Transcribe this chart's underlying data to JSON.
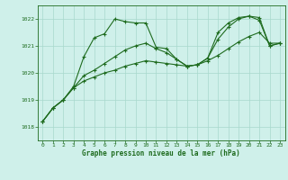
{
  "bg_color": "#cff0ea",
  "grid_color": "#a8d8cc",
  "line_color": "#1e6b1e",
  "ylim": [
    1017.5,
    1022.5
  ],
  "xlim": [
    -0.5,
    23.5
  ],
  "yticks": [
    1018,
    1019,
    1020,
    1021,
    1022
  ],
  "xticks": [
    0,
    1,
    2,
    3,
    4,
    5,
    6,
    7,
    8,
    9,
    10,
    11,
    12,
    13,
    14,
    15,
    16,
    17,
    18,
    19,
    20,
    21,
    22,
    23
  ],
  "xlabel": "Graphe pression niveau de la mer (hPa)",
  "series1_x": [
    0,
    1,
    2,
    3,
    4,
    5,
    6,
    7,
    8,
    9,
    10,
    11,
    12,
    13,
    14,
    15,
    16,
    17,
    18,
    19,
    20,
    21,
    22,
    23
  ],
  "series1_y": [
    1018.2,
    1018.7,
    1019.0,
    1019.5,
    1020.6,
    1021.3,
    1021.45,
    1022.0,
    1021.9,
    1021.85,
    1021.85,
    1020.95,
    1020.9,
    1020.5,
    1020.25,
    1020.3,
    1020.55,
    1021.5,
    1021.85,
    1022.05,
    1022.1,
    1022.05,
    1021.0,
    1021.1
  ],
  "series2_x": [
    0,
    1,
    2,
    3,
    4,
    5,
    6,
    7,
    8,
    9,
    10,
    11,
    12,
    13,
    14,
    15,
    16,
    17,
    18,
    19,
    20,
    21,
    22,
    23
  ],
  "series2_y": [
    1018.2,
    1018.7,
    1019.0,
    1019.45,
    1019.9,
    1020.1,
    1020.35,
    1020.6,
    1020.85,
    1021.0,
    1021.1,
    1020.9,
    1020.75,
    1020.5,
    1020.25,
    1020.3,
    1020.55,
    1021.25,
    1021.7,
    1022.0,
    1022.1,
    1021.95,
    1021.0,
    1021.1
  ],
  "series3_x": [
    0,
    1,
    2,
    3,
    4,
    5,
    6,
    7,
    8,
    9,
    10,
    11,
    12,
    13,
    14,
    15,
    16,
    17,
    18,
    19,
    20,
    21,
    22,
    23
  ],
  "series3_y": [
    1018.2,
    1018.7,
    1019.0,
    1019.45,
    1019.7,
    1019.85,
    1020.0,
    1020.1,
    1020.25,
    1020.35,
    1020.45,
    1020.4,
    1020.35,
    1020.3,
    1020.25,
    1020.3,
    1020.45,
    1020.65,
    1020.9,
    1021.15,
    1021.35,
    1021.5,
    1021.1,
    1021.1
  ]
}
